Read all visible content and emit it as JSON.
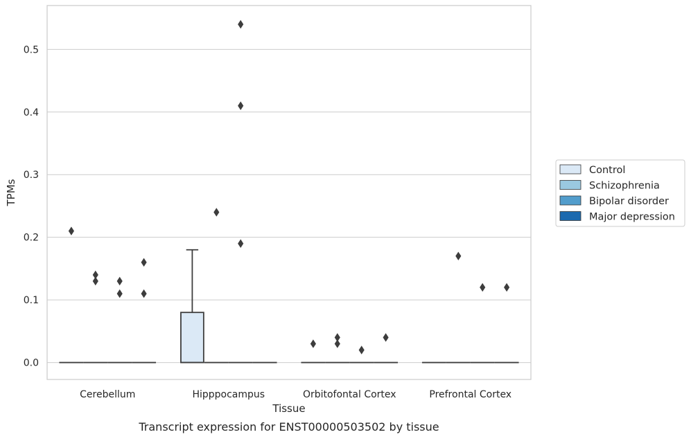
{
  "chart_data": {
    "type": "box",
    "xlabel": "Tissue",
    "ylabel": "TPMs",
    "caption": "Transcript expression for ENST00000503502 by tissue",
    "ylim": [
      -0.027,
      0.57
    ],
    "yticks": [
      0.0,
      0.1,
      0.2,
      0.3,
      0.4,
      0.5
    ],
    "ytick_labels": [
      "0.0",
      "0.1",
      "0.2",
      "0.3",
      "0.4",
      "0.5"
    ],
    "grid": true,
    "legend_position": "right",
    "categories": [
      "Cerebellum",
      "Hipppocampus",
      "Orbitofontal Cortex",
      "Prefrontal Cortex"
    ],
    "series": [
      {
        "name": "Control",
        "color": "#dbe9f6",
        "boxes": [
          {
            "q1": 0,
            "median": 0,
            "q3": 0,
            "whisker_low": 0,
            "whisker_high": 0,
            "outliers": [
              0.21
            ]
          },
          {
            "q1": 0,
            "median": 0,
            "q3": 0.08,
            "whisker_low": 0,
            "whisker_high": 0.18,
            "outliers": []
          },
          {
            "q1": 0,
            "median": 0,
            "q3": 0,
            "whisker_low": 0,
            "whisker_high": 0,
            "outliers": [
              0.03
            ]
          },
          {
            "q1": 0,
            "median": 0,
            "q3": 0,
            "whisker_low": 0,
            "whisker_high": 0,
            "outliers": []
          }
        ]
      },
      {
        "name": "Schizophrenia",
        "color": "#9ac8e0",
        "boxes": [
          {
            "q1": 0,
            "median": 0,
            "q3": 0,
            "whisker_low": 0,
            "whisker_high": 0,
            "outliers": [
              0.13,
              0.14
            ]
          },
          {
            "q1": 0,
            "median": 0,
            "q3": 0,
            "whisker_low": 0,
            "whisker_high": 0,
            "outliers": [
              0.24
            ]
          },
          {
            "q1": 0,
            "median": 0,
            "q3": 0,
            "whisker_low": 0,
            "whisker_high": 0,
            "outliers": [
              0.03,
              0.04
            ]
          },
          {
            "q1": 0,
            "median": 0,
            "q3": 0,
            "whisker_low": 0,
            "whisker_high": 0,
            "outliers": [
              0.17
            ]
          }
        ]
      },
      {
        "name": "Bipolar disorder",
        "color": "#529dcc",
        "boxes": [
          {
            "q1": 0,
            "median": 0,
            "q3": 0,
            "whisker_low": 0,
            "whisker_high": 0,
            "outliers": [
              0.11,
              0.13
            ]
          },
          {
            "q1": 0,
            "median": 0,
            "q3": 0,
            "whisker_low": 0,
            "whisker_high": 0,
            "outliers": [
              0.19,
              0.41,
              0.54
            ]
          },
          {
            "q1": 0,
            "median": 0,
            "q3": 0,
            "whisker_low": 0,
            "whisker_high": 0,
            "outliers": [
              0.02
            ]
          },
          {
            "q1": 0,
            "median": 0,
            "q3": 0,
            "whisker_low": 0,
            "whisker_high": 0,
            "outliers": [
              0.12
            ]
          }
        ]
      },
      {
        "name": "Major depression",
        "color": "#1c6aaf",
        "boxes": [
          {
            "q1": 0,
            "median": 0,
            "q3": 0,
            "whisker_low": 0,
            "whisker_high": 0,
            "outliers": [
              0.11,
              0.16
            ]
          },
          {
            "q1": 0,
            "median": 0,
            "q3": 0,
            "whisker_low": 0,
            "whisker_high": 0,
            "outliers": []
          },
          {
            "q1": 0,
            "median": 0,
            "q3": 0,
            "whisker_low": 0,
            "whisker_high": 0,
            "outliers": [
              0.04
            ]
          },
          {
            "q1": 0,
            "median": 0,
            "q3": 0,
            "whisker_low": 0,
            "whisker_high": 0,
            "outliers": [
              0.12
            ]
          }
        ]
      }
    ]
  }
}
